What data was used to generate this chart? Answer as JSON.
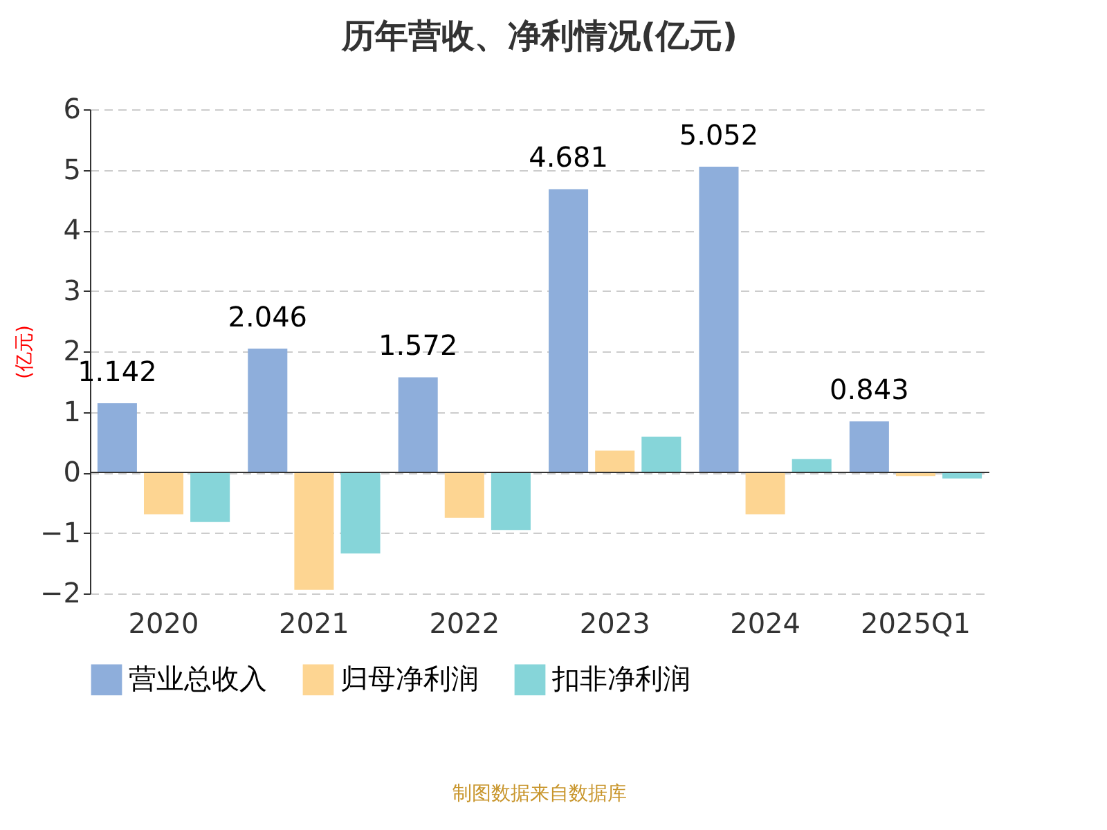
{
  "chart_data": {
    "type": "bar",
    "title": "历年营收、净利情况(亿元)",
    "ylabel": "(亿元)",
    "categories": [
      "2020",
      "2021",
      "2022",
      "2023",
      "2024",
      "2025Q1"
    ],
    "series": [
      {
        "name": "营业总收入",
        "color": "#8eaedb",
        "values": [
          1.142,
          2.046,
          1.572,
          4.681,
          5.052,
          0.843
        ],
        "value_labels": [
          "1.142",
          "2.046",
          "1.572",
          "4.681",
          "5.052",
          "0.843"
        ]
      },
      {
        "name": "归母净利润",
        "color": "#fdd592",
        "values": [
          -0.69,
          -1.94,
          -0.75,
          0.36,
          -0.69,
          -0.06
        ]
      },
      {
        "name": "扣非净利润",
        "color": "#86d5d9",
        "values": [
          -0.82,
          -1.34,
          -0.95,
          0.59,
          0.22,
          -0.1
        ]
      }
    ],
    "ylim": [
      -2,
      6
    ],
    "yticks": [
      -2,
      -1,
      0,
      1,
      2,
      3,
      4,
      5,
      6
    ],
    "grid": "y",
    "legend": "bottom",
    "annotations": [
      "制图数据来自数据库"
    ]
  }
}
